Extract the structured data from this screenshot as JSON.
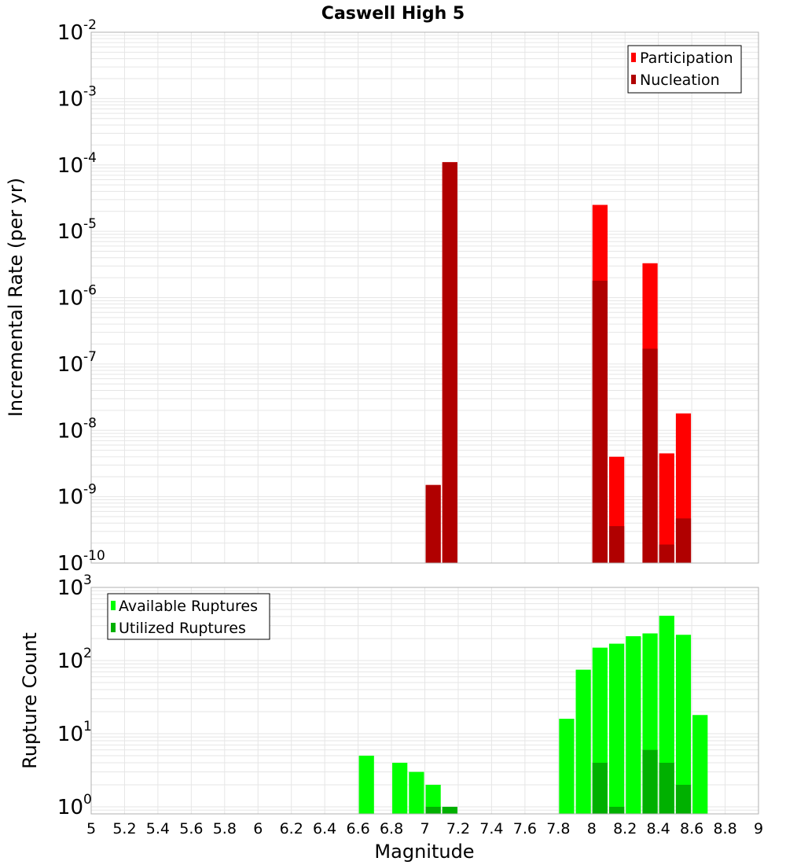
{
  "title": "Caswell High 5",
  "colors": {
    "participation": "#ff0000",
    "nucleation": "#b00000",
    "available": "#00ff00",
    "utilized": "#00b000",
    "grid": "#e6e6e6",
    "frame": "#b0b0b0"
  },
  "chart_data": [
    {
      "type": "bar",
      "yscale": "log",
      "ylabel": "Incremental Rate (per yr)",
      "ylim": [
        1e-10,
        0.01
      ],
      "xlim": [
        5,
        9
      ],
      "bar_width": 0.1,
      "y_tick_exponents": [
        "-10",
        "-9",
        "-8",
        "-7",
        "-6",
        "-5",
        "-4",
        "-3",
        "-2"
      ],
      "y_tick_base": "10",
      "legend": {
        "position": "top-right",
        "entries": [
          "Participation",
          "Nucleation"
        ]
      },
      "series": [
        {
          "name": "Participation",
          "points": [
            {
              "x": 7.05,
              "y": 1.5e-09
            },
            {
              "x": 7.15,
              "y": 0.00011
            },
            {
              "x": 8.05,
              "y": 2.5e-05
            },
            {
              "x": 8.15,
              "y": 4e-09
            },
            {
              "x": 8.35,
              "y": 3.3e-06
            },
            {
              "x": 8.45,
              "y": 4.5e-09
            },
            {
              "x": 8.55,
              "y": 1.8e-08
            }
          ]
        },
        {
          "name": "Nucleation",
          "points": [
            {
              "x": 7.05,
              "y": 1.5e-09
            },
            {
              "x": 7.15,
              "y": 0.00011
            },
            {
              "x": 8.05,
              "y": 1.8e-06
            },
            {
              "x": 8.15,
              "y": 3.6e-10
            },
            {
              "x": 8.35,
              "y": 1.7e-07
            },
            {
              "x": 8.45,
              "y": 1.9e-10
            },
            {
              "x": 8.55,
              "y": 4.7e-10
            }
          ]
        }
      ]
    },
    {
      "type": "bar",
      "yscale": "log",
      "ylabel": "Rupture Count",
      "xlabel": "Magnitude",
      "ylim": [
        0.8,
        1000
      ],
      "xlim": [
        5,
        9
      ],
      "bar_width": 0.1,
      "y_tick_exponents": [
        "0",
        "1",
        "2",
        "3"
      ],
      "y_tick_base": "10",
      "x_ticks": [
        "5",
        "5.2",
        "5.4",
        "5.6",
        "5.8",
        "6",
        "6.2",
        "6.4",
        "6.6",
        "6.8",
        "7",
        "7.2",
        "7.4",
        "7.6",
        "7.8",
        "8",
        "8.2",
        "8.4",
        "8.6",
        "8.8",
        "9"
      ],
      "legend": {
        "position": "top-left",
        "entries": [
          "Available Ruptures",
          "Utilized Ruptures"
        ]
      },
      "series": [
        {
          "name": "Available Ruptures",
          "points": [
            {
              "x": 6.65,
              "y": 5
            },
            {
              "x": 6.85,
              "y": 4
            },
            {
              "x": 6.95,
              "y": 3
            },
            {
              "x": 7.05,
              "y": 2
            },
            {
              "x": 7.15,
              "y": 1
            },
            {
              "x": 7.85,
              "y": 16
            },
            {
              "x": 7.95,
              "y": 75
            },
            {
              "x": 8.05,
              "y": 150
            },
            {
              "x": 8.15,
              "y": 170
            },
            {
              "x": 8.25,
              "y": 215
            },
            {
              "x": 8.35,
              "y": 235
            },
            {
              "x": 8.45,
              "y": 410
            },
            {
              "x": 8.55,
              "y": 225
            },
            {
              "x": 8.65,
              "y": 18
            }
          ]
        },
        {
          "name": "Utilized Ruptures",
          "points": [
            {
              "x": 7.05,
              "y": 1
            },
            {
              "x": 7.15,
              "y": 1
            },
            {
              "x": 8.05,
              "y": 4
            },
            {
              "x": 8.15,
              "y": 1
            },
            {
              "x": 8.35,
              "y": 6
            },
            {
              "x": 8.45,
              "y": 4
            },
            {
              "x": 8.55,
              "y": 2
            }
          ]
        }
      ]
    }
  ]
}
